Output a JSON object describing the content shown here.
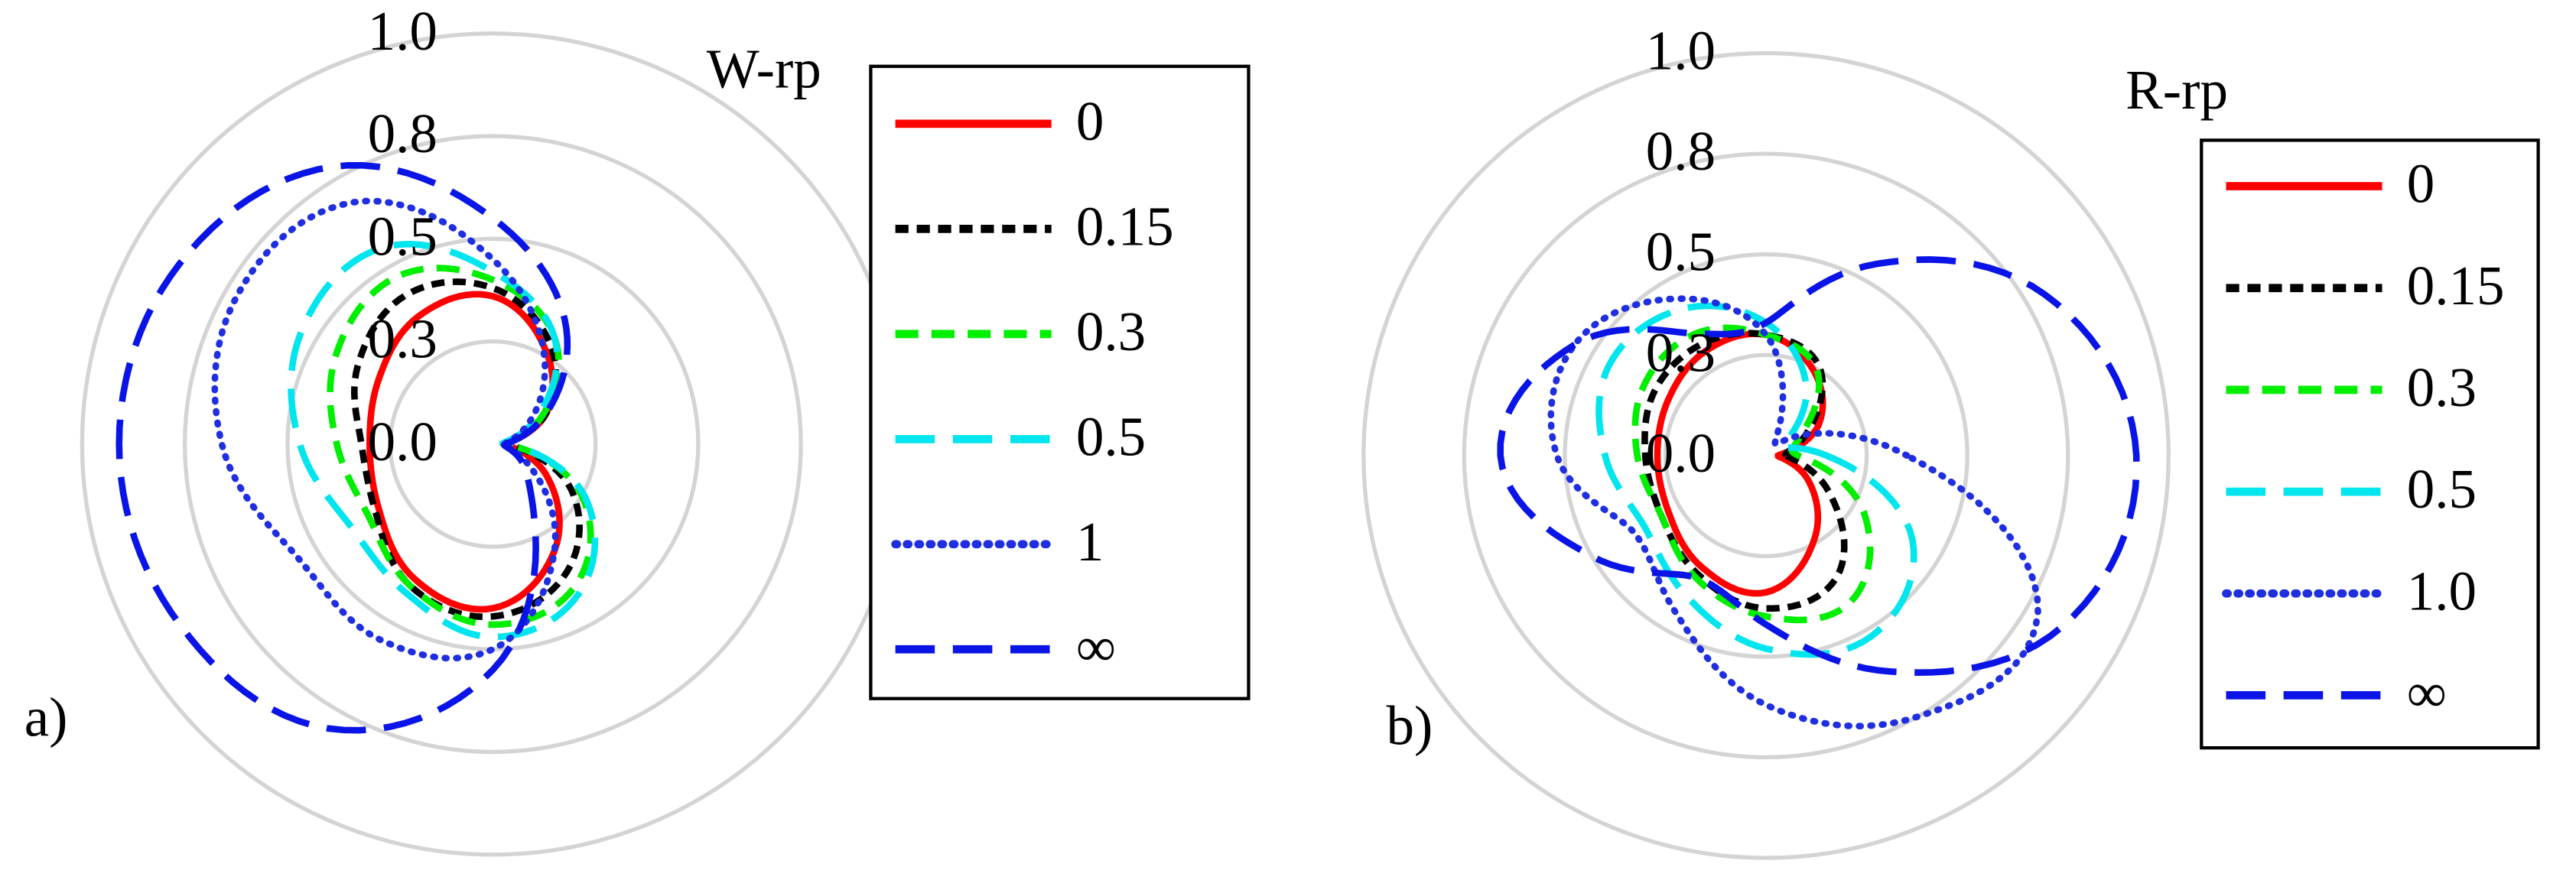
{
  "chart_data": [
    {
      "type": "polar",
      "title": "W-rp",
      "panel_label": "a)",
      "theta": [
        0,
        30,
        60,
        90,
        120,
        150,
        180,
        210,
        240,
        270,
        300,
        330
      ],
      "rlim": [
        0,
        1
      ],
      "rticks": [
        {
          "value": 0,
          "label": "0.0"
        },
        {
          "value": 0.25,
          "label": "0.3"
        },
        0.5,
        {
          "value": 0.75,
          "label": "0.8"
        },
        {
          "value": 1,
          "label": "1.0"
        }
      ],
      "grid": true,
      "series": [
        {
          "name": "0",
          "color": "#ff0000",
          "line_style": "solid",
          "values": [
            0.03,
            0.15,
            0.26,
            0.36,
            0.36,
            0.32,
            0.3,
            0.32,
            0.38,
            0.4,
            0.3,
            0.15
          ]
        },
        {
          "name": "0.15",
          "color": "#000000",
          "line_style": "short-dash",
          "values": [
            0.03,
            0.15,
            0.28,
            0.38,
            0.42,
            0.38,
            0.32,
            0.33,
            0.4,
            0.42,
            0.36,
            0.22
          ]
        },
        {
          "name": "0.3",
          "color": "#00ee00",
          "line_style": "dash",
          "values": [
            0.03,
            0.14,
            0.3,
            0.4,
            0.47,
            0.44,
            0.38,
            0.35,
            0.4,
            0.44,
            0.4,
            0.25
          ]
        },
        {
          "name": "0.5",
          "color": "#00e5ee",
          "line_style": "long-dash",
          "values": [
            0.03,
            0.12,
            0.3,
            0.42,
            0.55,
            0.54,
            0.47,
            0.4,
            0.42,
            0.47,
            0.42,
            0.26
          ]
        },
        {
          "name": "1",
          "color": "#1f2fe0",
          "line_style": "dotted",
          "values": [
            0.03,
            0.1,
            0.25,
            0.45,
            0.68,
            0.72,
            0.66,
            0.55,
            0.55,
            0.5,
            0.3,
            0.1
          ]
        },
        {
          "name": "∞",
          "color": "#0a14e6",
          "line_style": "long-dash",
          "values": [
            0.03,
            0.15,
            0.35,
            0.55,
            0.78,
            0.88,
            0.91,
            0.88,
            0.8,
            0.55,
            0.2,
            0.08
          ]
        }
      ]
    },
    {
      "type": "polar",
      "title": "R-rp",
      "panel_label": "b)",
      "theta": [
        0,
        30,
        60,
        90,
        120,
        150,
        180,
        210,
        240,
        270,
        300,
        330
      ],
      "rlim": [
        0,
        1
      ],
      "rticks": [
        {
          "value": 0,
          "label": "0.0"
        },
        {
          "value": 0.25,
          "label": "0.3"
        },
        0.5,
        {
          "value": 0.75,
          "label": "0.8"
        },
        {
          "value": 1,
          "label": "1.0"
        }
      ],
      "grid": true,
      "series": [
        {
          "name": "0",
          "color": "#ff0000",
          "line_style": "solid",
          "values": [
            0.03,
            0.15,
            0.24,
            0.3,
            0.3,
            0.28,
            0.27,
            0.28,
            0.32,
            0.34,
            0.24,
            0.12
          ]
        },
        {
          "name": "0.15",
          "color": "#000000",
          "line_style": "short-dash",
          "values": [
            0.05,
            0.12,
            0.26,
            0.3,
            0.32,
            0.32,
            0.3,
            0.3,
            0.34,
            0.38,
            0.35,
            0.18
          ]
        },
        {
          "name": "0.3",
          "color": "#00ee00",
          "line_style": "dash",
          "values": [
            0.08,
            0.1,
            0.25,
            0.3,
            0.35,
            0.35,
            0.32,
            0.3,
            0.35,
            0.4,
            0.42,
            0.28
          ]
        },
        {
          "name": "0.5",
          "color": "#00e5ee",
          "line_style": "long-dash",
          "values": [
            0.15,
            0.05,
            0.2,
            0.33,
            0.42,
            0.45,
            0.4,
            0.35,
            0.4,
            0.48,
            0.52,
            0.42
          ]
        },
        {
          "name": "1.0",
          "color": "#1f2fe0",
          "line_style": "dotted",
          "values": [
            0.35,
            0.1,
            0.05,
            0.3,
            0.45,
            0.55,
            0.52,
            0.38,
            0.45,
            0.62,
            0.75,
            0.78
          ]
        },
        {
          "name": "∞",
          "color": "#0a14e6",
          "line_style": "long-dash",
          "values": [
            0.92,
            0.8,
            0.55,
            0.33,
            0.35,
            0.55,
            0.66,
            0.5,
            0.35,
            0.42,
            0.62,
            0.85
          ]
        }
      ]
    }
  ]
}
